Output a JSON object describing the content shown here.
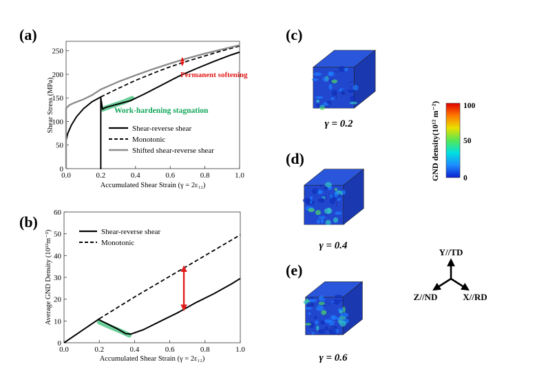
{
  "panels": {
    "a": "(a)",
    "b": "(b)",
    "c": "(c)",
    "d": "(d)",
    "e": "(e)"
  },
  "colors": {
    "curve": "#000000",
    "shifted": "#8c8c8c",
    "highlight": "#3cbf78",
    "annotation_red": "#e21b1b",
    "annotation_green": "#12a65a",
    "cube_base": "#1f3fc4"
  },
  "chart_data": [
    {
      "id": "a",
      "type": "line",
      "xlabel": "Accumulated Shear Strain (γ = 2ε₁₂)",
      "ylabel": "Shear Stress (MPa)",
      "xlim": [
        0,
        1.0
      ],
      "ylim": [
        0,
        270
      ],
      "xticks": [
        0.0,
        0.2,
        0.4,
        0.6,
        0.8,
        1.0
      ],
      "xtick_labels": [
        "0.0",
        "0.2",
        "0.4",
        "0.6",
        "0.8",
        "1.0"
      ],
      "yticks": [
        0,
        50,
        100,
        150,
        200,
        250
      ],
      "ytick_labels": [
        "0",
        "50",
        "100",
        "150",
        "200",
        "250"
      ],
      "legend": [
        "Shear-reverse shear",
        "Monotonic",
        "Shifted shear-reverse shear"
      ],
      "legend_position": "center-right",
      "series": [
        {
          "name": "Shear-reverse shear",
          "style": "solid",
          "points": [
            [
              0,
              0
            ],
            [
              0,
              60
            ],
            [
              0.01,
              75
            ],
            [
              0.03,
              92
            ],
            [
              0.06,
              110
            ],
            [
              0.1,
              127
            ],
            [
              0.15,
              142
            ],
            [
              0.2,
              152
            ],
            [
              0.2,
              152
            ],
            [
              0.2,
              0
            ],
            [
              0.2,
              0
            ],
            [
              0.2,
              150
            ],
            [
              0.21,
              126
            ],
            [
              0.23,
              130
            ],
            [
              0.27,
              134
            ],
            [
              0.32,
              139
            ],
            [
              0.37,
              144
            ],
            [
              0.45,
              158
            ],
            [
              0.55,
              177
            ],
            [
              0.65,
              196
            ],
            [
              0.75,
              212
            ],
            [
              0.85,
              227
            ],
            [
              0.95,
              241
            ],
            [
              1.0,
              247
            ]
          ]
        },
        {
          "name": "Monotonic",
          "style": "dashed",
          "points": [
            [
              0.2,
              152
            ],
            [
              0.3,
              170
            ],
            [
              0.4,
              187
            ],
            [
              0.5,
              202
            ],
            [
              0.6,
              216
            ],
            [
              0.7,
              228
            ],
            [
              0.8,
              239
            ],
            [
              0.9,
              250
            ],
            [
              1.0,
              260
            ]
          ]
        },
        {
          "name": "Shifted shear-reverse shear",
          "style": "solid-gray",
          "points": [
            [
              0,
              0
            ],
            [
              0,
              128
            ],
            [
              0.02,
              135
            ],
            [
              0.05,
              140
            ],
            [
              0.1,
              147
            ],
            [
              0.15,
              156
            ],
            [
              0.2,
              168
            ],
            [
              0.3,
              184
            ],
            [
              0.4,
              198
            ],
            [
              0.5,
              211
            ],
            [
              0.6,
              223
            ],
            [
              0.7,
              234
            ],
            [
              0.8,
              244
            ],
            [
              0.9,
              253
            ],
            [
              1.0,
              262
            ]
          ]
        }
      ],
      "highlight": [
        [
          0.21,
          126
        ],
        [
          0.27,
          134
        ],
        [
          0.33,
          141
        ],
        [
          0.38,
          149
        ]
      ],
      "annotations": [
        {
          "text": "Permanent softening",
          "color": "red",
          "x": 0.67,
          "y1": 232,
          "y2": 222
        },
        {
          "text": "Work-hardening stagnation",
          "color": "green"
        }
      ]
    },
    {
      "id": "b",
      "type": "line",
      "xlabel": "Accumulated Shear Strain (γ = 2ε₁₂)",
      "ylabel": "Average GND Density (10¹²m⁻²)",
      "xlim": [
        0,
        1.0
      ],
      "ylim": [
        0,
        60
      ],
      "xticks": [
        0.0,
        0.2,
        0.4,
        0.6,
        0.8,
        1.0
      ],
      "xtick_labels": [
        "0.0",
        "0.2",
        "0.4",
        "0.6",
        "0.8",
        "1.0"
      ],
      "yticks": [
        0,
        10,
        20,
        30,
        40,
        50,
        60
      ],
      "ytick_labels": [
        "0",
        "10",
        "20",
        "30",
        "40",
        "50",
        "60"
      ],
      "legend": [
        "Shear-reverse shear",
        "Monotonic"
      ],
      "legend_position": "top-left",
      "series": [
        {
          "name": "Shear-reverse shear",
          "style": "solid",
          "points": [
            [
              0,
              0
            ],
            [
              0.1,
              5.5
            ],
            [
              0.2,
              11
            ],
            [
              0.2,
              10.5
            ],
            [
              0.25,
              8.5
            ],
            [
              0.3,
              6.5
            ],
            [
              0.35,
              4.2
            ],
            [
              0.38,
              4
            ],
            [
              0.45,
              6
            ],
            [
              0.55,
              10
            ],
            [
              0.65,
              14
            ],
            [
              0.75,
              18.5
            ],
            [
              0.85,
              22.5
            ],
            [
              0.95,
              27
            ],
            [
              1.0,
              29.5
            ]
          ]
        },
        {
          "name": "Monotonic",
          "style": "dashed",
          "points": [
            [
              0.2,
              11
            ],
            [
              0.4,
              21
            ],
            [
              0.6,
              30.5
            ],
            [
              0.8,
              40
            ],
            [
              1.0,
              49.5
            ]
          ]
        }
      ],
      "highlight": [
        [
          0.2,
          9.5
        ],
        [
          0.27,
          7
        ],
        [
          0.33,
          5
        ],
        [
          0.37,
          3.5
        ]
      ],
      "annotations": [
        {
          "text": "",
          "color": "red",
          "x": 0.68,
          "y1": 34,
          "y2": 16
        }
      ]
    }
  ],
  "cubes": [
    {
      "id": "c",
      "label": "γ = 0.2",
      "gamma_value": 0.2
    },
    {
      "id": "d",
      "label": "γ = 0.4",
      "gamma_value": 0.4
    },
    {
      "id": "e",
      "label": "γ = 0.6",
      "gamma_value": 0.6
    }
  ],
  "colorbar": {
    "title": "GND density(10¹² m⁻²)",
    "max_label": "100",
    "mid_label": "50",
    "min_label": "0",
    "stops": [
      "#0a1fd0",
      "#1e8cff",
      "#00e0e0",
      "#55e655",
      "#e8e000",
      "#ff7a00",
      "#e00000"
    ]
  },
  "axes_triad": {
    "y": "Y//TD",
    "z": "Z//ND",
    "x": "X//RD"
  }
}
